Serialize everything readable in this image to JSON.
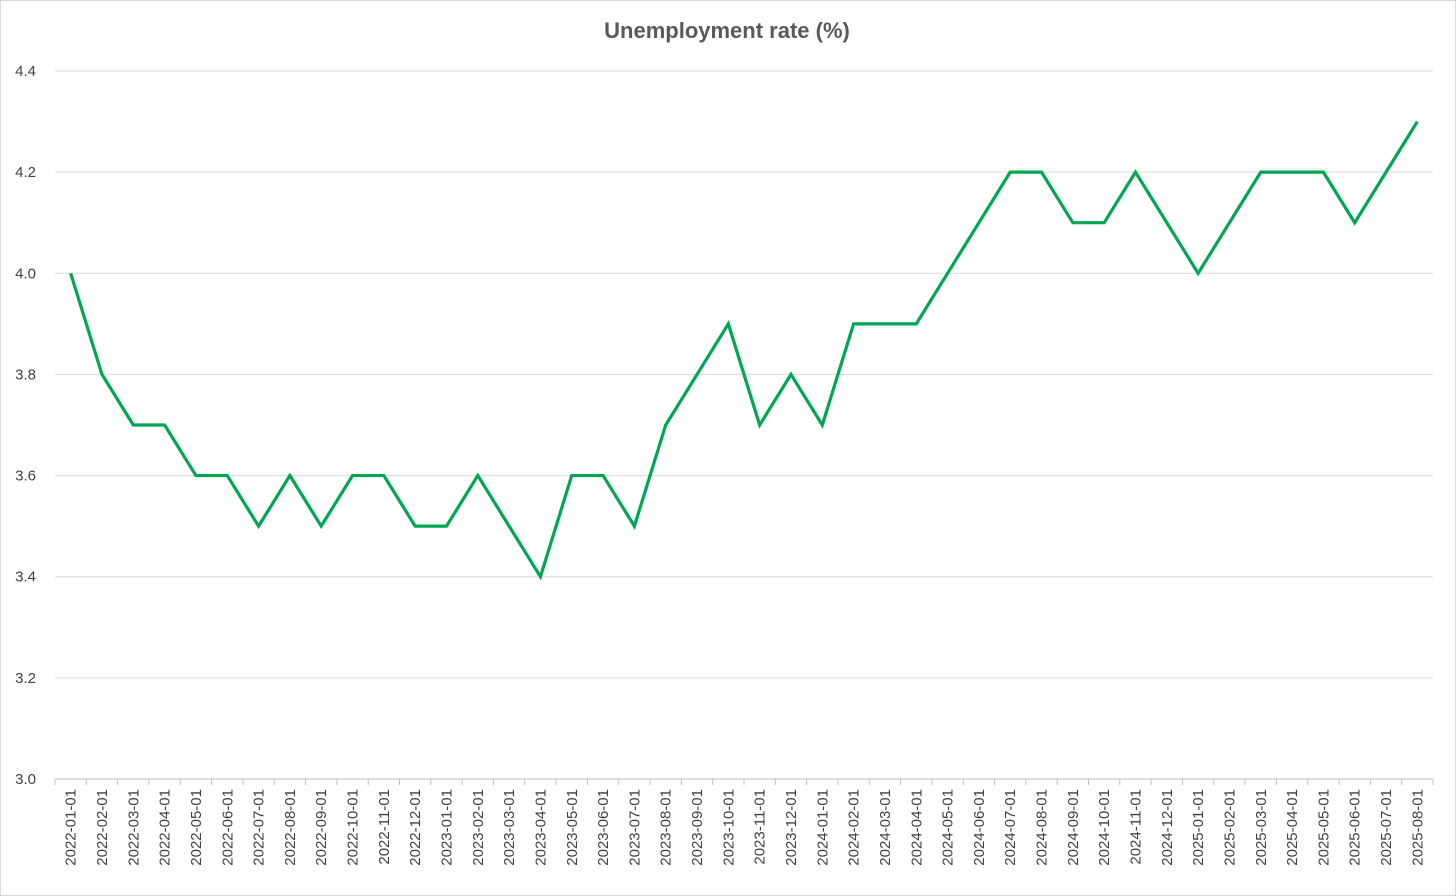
{
  "chart_data": {
    "type": "line",
    "title": "Unemployment rate (%)",
    "xlabel": "",
    "ylabel": "",
    "ylim": [
      3.0,
      4.4
    ],
    "yticks": [
      "3.0",
      "3.2",
      "3.4",
      "3.6",
      "3.8",
      "4.0",
      "4.2",
      "4.4"
    ],
    "grid": true,
    "line_color": "#00A651",
    "categories": [
      "2022-01-01",
      "2022-02-01",
      "2022-03-01",
      "2022-04-01",
      "2022-05-01",
      "2022-06-01",
      "2022-07-01",
      "2022-08-01",
      "2022-09-01",
      "2022-10-01",
      "2022-11-01",
      "2022-12-01",
      "2023-01-01",
      "2023-02-01",
      "2023-03-01",
      "2023-04-01",
      "2023-05-01",
      "2023-06-01",
      "2023-07-01",
      "2023-08-01",
      "2023-09-01",
      "2023-10-01",
      "2023-11-01",
      "2023-12-01",
      "2024-01-01",
      "2024-02-01",
      "2024-03-01",
      "2024-04-01",
      "2024-05-01",
      "2024-06-01",
      "2024-07-01",
      "2024-08-01",
      "2024-09-01",
      "2024-10-01",
      "2024-11-01",
      "2024-12-01",
      "2025-01-01",
      "2025-02-01",
      "2025-03-01",
      "2025-04-01",
      "2025-05-01",
      "2025-06-01",
      "2025-07-01",
      "2025-08-01"
    ],
    "series": [
      {
        "values": [
          4.0,
          3.8,
          3.7,
          3.7,
          3.6,
          3.6,
          3.5,
          3.6,
          3.5,
          3.6,
          3.6,
          3.5,
          3.5,
          3.6,
          3.5,
          3.4,
          3.6,
          3.6,
          3.5,
          3.7,
          3.8,
          3.9,
          3.7,
          3.8,
          3.7,
          3.9,
          3.9,
          3.9,
          4.0,
          4.1,
          4.2,
          4.2,
          4.1,
          4.1,
          4.2,
          4.1,
          4.0,
          4.1,
          4.2,
          4.2,
          4.2,
          4.1,
          4.2,
          4.3
        ]
      }
    ]
  }
}
